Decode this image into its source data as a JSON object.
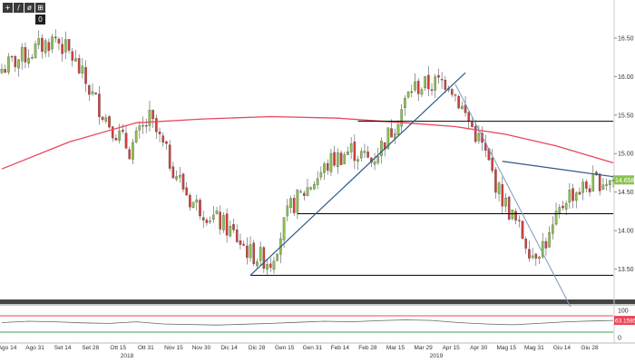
{
  "toolbar": {
    "buttons": [
      {
        "icon": "plus-icon",
        "glyph": "+"
      },
      {
        "icon": "draw-line-icon",
        "glyph": "/"
      },
      {
        "icon": "erase-icon",
        "glyph": "ø"
      },
      {
        "icon": "crosshair-icon",
        "glyph": "⊞"
      }
    ],
    "count_badge": "0"
  },
  "colors": {
    "moving_average": "#e8485a",
    "trendline": "#2e5a87",
    "trendline_thin": "#7f98bb",
    "horizontal_level": "#000000",
    "candle_up": "#8bc34a",
    "candle_down": "#d43f3a",
    "price_tag_bg": "#8bc34a",
    "oscillator_tag_bg": "#e8485a"
  },
  "chart_data": {
    "type": "candlestick",
    "price_axis": {
      "ylim": [
        13.2,
        16.9
      ],
      "ticks": [
        "16.50",
        "16.00",
        "15.50",
        "15.00",
        "14.50",
        "14.00",
        "13.50"
      ]
    },
    "x_axis_labels": [
      "Ago 14",
      "Ago 31",
      "Set 14",
      "Set 28",
      "Ott 15",
      "Ott 31",
      "Nov 15",
      "Nov 30",
      "Dic 14",
      "Dic 28",
      "Gen 15",
      "Gen 31",
      "Feb 14",
      "Feb 28",
      "Mar 15",
      "Mar 29",
      "Apr 15",
      "Apr 30",
      "Mag 15",
      "Mag 31",
      "Giu 14",
      "Giu 28"
    ],
    "year_labels": [
      "2018",
      "2019"
    ],
    "last_price_label": "14.658",
    "price_path": [
      [
        0,
        16.1
      ],
      [
        8,
        16.3
      ],
      [
        16,
        16.5
      ],
      [
        21,
        16.25
      ],
      [
        27,
        15.75
      ],
      [
        32,
        15.4
      ],
      [
        38,
        15.05
      ],
      [
        44,
        15.45
      ],
      [
        50,
        14.9
      ],
      [
        56,
        14.4
      ],
      [
        62,
        14.2
      ],
      [
        68,
        14.0
      ],
      [
        74,
        13.7
      ],
      [
        80,
        13.6
      ],
      [
        86,
        14.3
      ],
      [
        92,
        14.6
      ],
      [
        98,
        14.9
      ],
      [
        104,
        15.05
      ],
      [
        110,
        14.9
      ],
      [
        116,
        15.3
      ],
      [
        122,
        15.85
      ],
      [
        128,
        15.9
      ],
      [
        133,
        15.95
      ],
      [
        138,
        15.5
      ],
      [
        143,
        15.1
      ],
      [
        148,
        14.5
      ],
      [
        153,
        14.1
      ],
      [
        158,
        13.7
      ],
      [
        163,
        13.9
      ],
      [
        168,
        14.45
      ],
      [
        173,
        14.55
      ],
      [
        178,
        14.65
      ],
      [
        182,
        14.658
      ]
    ],
    "candles_count": 183,
    "moving_average": {
      "values": [
        [
          0,
          14.8
        ],
        [
          20,
          15.15
        ],
        [
          40,
          15.4
        ],
        [
          60,
          15.45
        ],
        [
          80,
          15.48
        ],
        [
          100,
          15.46
        ],
        [
          120,
          15.4
        ],
        [
          135,
          15.35
        ],
        [
          150,
          15.25
        ],
        [
          165,
          15.1
        ],
        [
          182,
          14.88
        ]
      ]
    },
    "horizontal_levels": [
      {
        "value": 15.42,
        "x_start": 106,
        "x_end": 182
      },
      {
        "value": 14.22,
        "x_start": 88,
        "x_end": 182
      },
      {
        "value": 13.42,
        "x_start": 74,
        "x_end": 182
      }
    ],
    "trendlines": [
      {
        "style": "thick",
        "points": [
          [
            74,
            13.42
          ],
          [
            138,
            16.05
          ]
        ]
      },
      {
        "style": "thin",
        "points": [
          [
            135,
            15.9
          ],
          [
            170,
            12.95
          ]
        ]
      },
      {
        "style": "thick",
        "points": [
          [
            149,
            14.9
          ],
          [
            182,
            14.7
          ]
        ]
      }
    ],
    "oscillator": {
      "ylim": [
        0,
        100
      ],
      "ticks": [
        "100",
        "0"
      ],
      "levels": [
        80,
        20
      ],
      "last_value_label": "63.1585",
      "values": [
        [
          0,
          55
        ],
        [
          8,
          60
        ],
        [
          16,
          58
        ],
        [
          24,
          54
        ],
        [
          32,
          52
        ],
        [
          40,
          58
        ],
        [
          48,
          50
        ],
        [
          56,
          48
        ],
        [
          64,
          46
        ],
        [
          72,
          49
        ],
        [
          80,
          52
        ],
        [
          88,
          56
        ],
        [
          96,
          60
        ],
        [
          104,
          58
        ],
        [
          112,
          62
        ],
        [
          120,
          65
        ],
        [
          128,
          63
        ],
        [
          136,
          55
        ],
        [
          144,
          50
        ],
        [
          152,
          47
        ],
        [
          160,
          52
        ],
        [
          168,
          58
        ],
        [
          176,
          61
        ],
        [
          182,
          63.16
        ]
      ]
    }
  }
}
